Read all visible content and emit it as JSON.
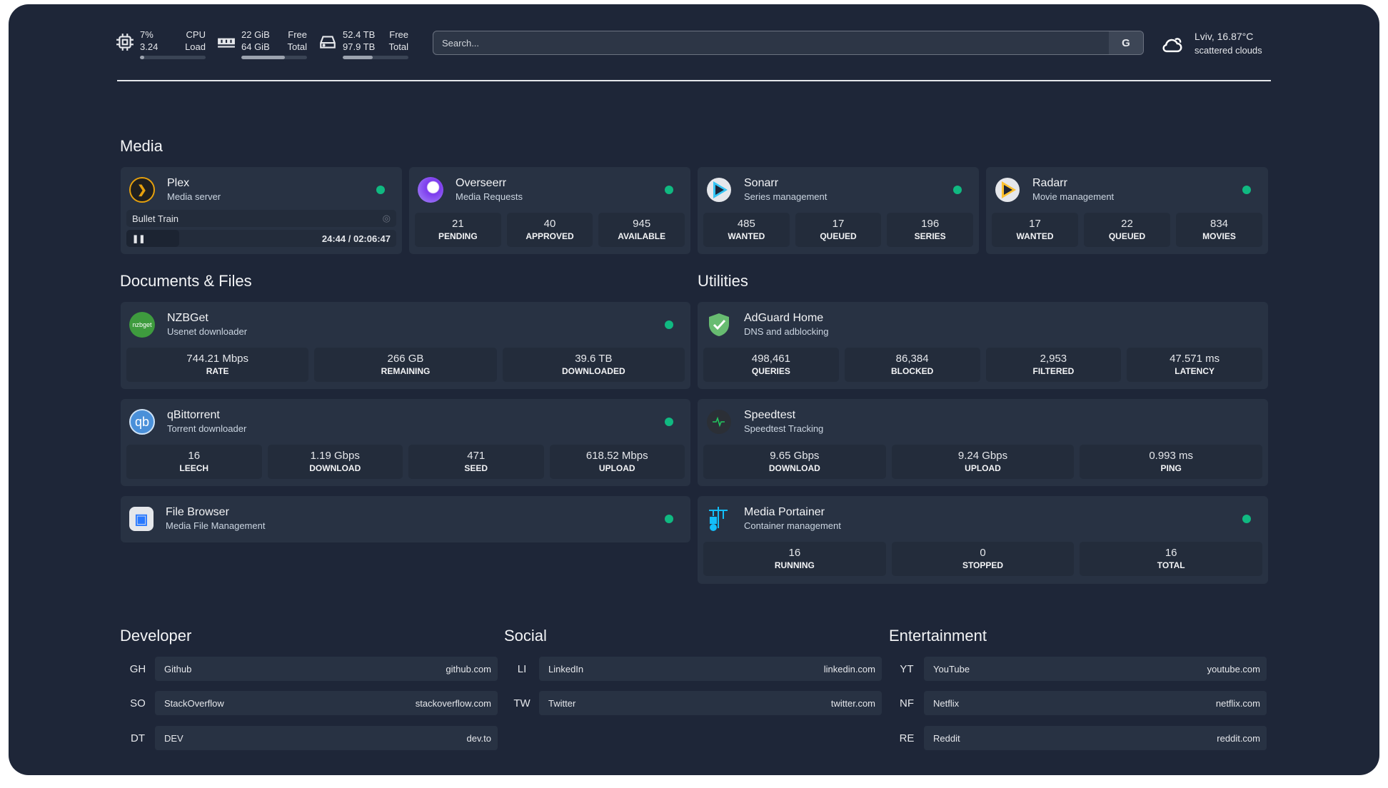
{
  "resources": {
    "cpu": {
      "icon": "cpu-icon",
      "value1": "7%",
      "value2": "3.24",
      "label1": "CPU",
      "label2": "Load",
      "usage": 7
    },
    "memory": {
      "icon": "memory-icon",
      "value1": "22 GiB",
      "value2": "64 GiB",
      "label1": "Free",
      "label2": "Total",
      "usage": 66
    },
    "disk": {
      "icon": "disk-icon",
      "value1": "52.4 TB",
      "value2": "97.9 TB",
      "label1": "Free",
      "label2": "Total",
      "usage": 46
    }
  },
  "search": {
    "placeholder": "Search...",
    "provider": "G"
  },
  "weather": {
    "icon": "cloud-icon",
    "line1": "Lviv, 16.87°C",
    "line2": "scattered clouds"
  },
  "colors": {
    "background": "#1e2638",
    "card": "#283243",
    "status": "#10b981"
  },
  "media": {
    "title": "Media",
    "plex": {
      "name": "Plex",
      "desc": "Media server",
      "now_playing": "Bullet Train",
      "time": "24:44 / 02:06:47"
    },
    "overseerr": {
      "name": "Overseerr",
      "desc": "Media Requests",
      "stats": [
        {
          "v": "21",
          "l": "Pending"
        },
        {
          "v": "40",
          "l": "Approved"
        },
        {
          "v": "945",
          "l": "Available"
        }
      ]
    },
    "sonarr": {
      "name": "Sonarr",
      "desc": "Series management",
      "stats": [
        {
          "v": "485",
          "l": "Wanted"
        },
        {
          "v": "17",
          "l": "Queued"
        },
        {
          "v": "196",
          "l": "Series"
        }
      ]
    },
    "radarr": {
      "name": "Radarr",
      "desc": "Movie management",
      "stats": [
        {
          "v": "17",
          "l": "Wanted"
        },
        {
          "v": "22",
          "l": "Queued"
        },
        {
          "v": "834",
          "l": "Movies"
        }
      ]
    }
  },
  "docs": {
    "title": "Documents & Files",
    "nzbget": {
      "name": "NZBGet",
      "logo": "nzbget",
      "desc": "Usenet downloader",
      "stats": [
        {
          "v": "744.21 Mbps",
          "l": "Rate"
        },
        {
          "v": "266 GB",
          "l": "Remaining"
        },
        {
          "v": "39.6 TB",
          "l": "Downloaded"
        }
      ]
    },
    "qbit": {
      "name": "qBittorrent",
      "logo": "qb",
      "desc": "Torrent downloader",
      "stats": [
        {
          "v": "16",
          "l": "Leech"
        },
        {
          "v": "1.19 Gbps",
          "l": "Download"
        },
        {
          "v": "471",
          "l": "Seed"
        },
        {
          "v": "618.52 Mbps",
          "l": "Upload"
        }
      ]
    },
    "filebrowser": {
      "name": "File Browser",
      "desc": "Media File Management"
    }
  },
  "utilities": {
    "title": "Utilities",
    "adguard": {
      "name": "AdGuard Home",
      "desc": "DNS and adblocking",
      "stats": [
        {
          "v": "498,461",
          "l": "Queries"
        },
        {
          "v": "86,384",
          "l": "Blocked"
        },
        {
          "v": "2,953",
          "l": "Filtered"
        },
        {
          "v": "47.571 ms",
          "l": "Latency"
        }
      ]
    },
    "speedtest": {
      "name": "Speedtest",
      "desc": "Speedtest Tracking",
      "stats": [
        {
          "v": "9.65 Gbps",
          "l": "Download"
        },
        {
          "v": "9.24 Gbps",
          "l": "Upload"
        },
        {
          "v": "0.993 ms",
          "l": "Ping"
        }
      ]
    },
    "portainer": {
      "name": "Media Portainer",
      "desc": "Container management",
      "stats": [
        {
          "v": "16",
          "l": "Running"
        },
        {
          "v": "0",
          "l": "Stopped"
        },
        {
          "v": "16",
          "l": "Total"
        }
      ]
    }
  },
  "bookmarks": [
    {
      "title": "Developer",
      "items": [
        {
          "abbr": "GH",
          "name": "Github",
          "url": "github.com"
        },
        {
          "abbr": "SO",
          "name": "StackOverflow",
          "url": "stackoverflow.com"
        },
        {
          "abbr": "DT",
          "name": "DEV",
          "url": "dev.to"
        }
      ]
    },
    {
      "title": "Social",
      "items": [
        {
          "abbr": "LI",
          "name": "LinkedIn",
          "url": "linkedin.com"
        },
        {
          "abbr": "TW",
          "name": "Twitter",
          "url": "twitter.com"
        }
      ]
    },
    {
      "title": "Entertainment",
      "items": [
        {
          "abbr": "YT",
          "name": "YouTube",
          "url": "youtube.com"
        },
        {
          "abbr": "NF",
          "name": "Netflix",
          "url": "netflix.com"
        },
        {
          "abbr": "RE",
          "name": "Reddit",
          "url": "reddit.com"
        }
      ]
    }
  ]
}
